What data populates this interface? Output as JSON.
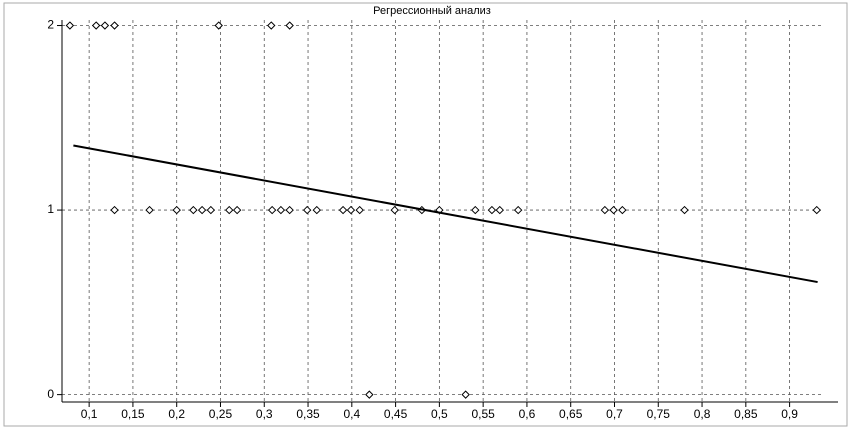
{
  "chart_data": {
    "type": "scatter",
    "title": "Регрессионный анализ",
    "xlim": [
      0.069,
      0.937
    ],
    "ylim": [
      -0.04,
      2.03
    ],
    "xticks": [
      {
        "value": 0.1,
        "label": "0,1"
      },
      {
        "value": 0.15,
        "label": "0,15"
      },
      {
        "value": 0.2,
        "label": "0,2"
      },
      {
        "value": 0.25,
        "label": "0,25"
      },
      {
        "value": 0.3,
        "label": "0,3"
      },
      {
        "value": 0.35,
        "label": "0,35"
      },
      {
        "value": 0.4,
        "label": "0,4"
      },
      {
        "value": 0.45,
        "label": "0,45"
      },
      {
        "value": 0.5,
        "label": "0,5"
      },
      {
        "value": 0.55,
        "label": "0,55"
      },
      {
        "value": 0.6,
        "label": "0,6"
      },
      {
        "value": 0.65,
        "label": "0,65"
      },
      {
        "value": 0.7,
        "label": "0,7"
      },
      {
        "value": 0.75,
        "label": "0,75"
      },
      {
        "value": 0.8,
        "label": "0,8"
      },
      {
        "value": 0.85,
        "label": "0,85"
      },
      {
        "value": 0.9,
        "label": "0,9"
      }
    ],
    "yticks": [
      0,
      1,
      2
    ],
    "grid": true,
    "series": [
      {
        "type": "scatter",
        "color": "#000000",
        "x": [
          0.078,
          0.108,
          0.118,
          0.129,
          0.248,
          0.308,
          0.329,
          0.129,
          0.169,
          0.2,
          0.219,
          0.229,
          0.239,
          0.26,
          0.269,
          0.309,
          0.319,
          0.329,
          0.349,
          0.36,
          0.39,
          0.399,
          0.409,
          0.449,
          0.48,
          0.5,
          0.541,
          0.56,
          0.569,
          0.59,
          0.689,
          0.699,
          0.709,
          0.78,
          0.931,
          0.42,
          0.53
        ],
        "values": [
          2,
          2,
          2,
          2,
          2,
          2,
          2,
          1,
          1,
          1,
          1,
          1,
          1,
          1,
          1,
          1,
          1,
          1,
          1,
          1,
          1,
          1,
          1,
          1,
          1,
          1,
          1,
          1,
          1,
          1,
          1,
          1,
          1,
          1,
          1,
          0,
          0
        ]
      },
      {
        "type": "line",
        "color": "#000000",
        "x": [
          0.082,
          0.932
        ],
        "values": [
          1.35,
          0.61
        ]
      }
    ]
  }
}
